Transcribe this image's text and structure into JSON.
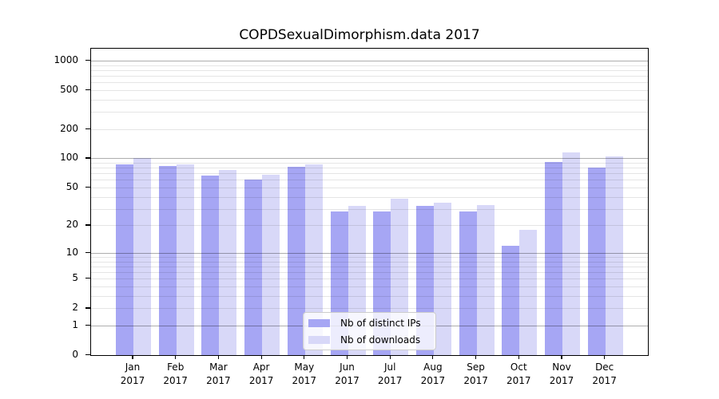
{
  "title": "COPDSexualDimorphism.data 2017",
  "chart_data": {
    "type": "bar",
    "title": "COPDSexualDimorphism.data 2017",
    "categories": [
      "Jan",
      "Feb",
      "Mar",
      "Apr",
      "May",
      "Jun",
      "Jul",
      "Aug",
      "Sep",
      "Oct",
      "Nov",
      "Dec"
    ],
    "x_tick_year": "2017",
    "series": [
      {
        "name": "Nb of distinct IPs",
        "color": "#a6a6f4",
        "values": [
          87,
          83,
          67,
          60,
          82,
          28,
          28,
          32,
          28,
          12,
          92,
          81
        ]
      },
      {
        "name": "Nb of downloads",
        "color": "#d8d8f8",
        "values": [
          101,
          86,
          76,
          68,
          86,
          32,
          38,
          35,
          33,
          18,
          115,
          104
        ]
      }
    ],
    "y_ticks": [
      0,
      1,
      2,
      5,
      10,
      20,
      50,
      100,
      200,
      500,
      1000
    ],
    "y_minor_gridlines": [
      2,
      3,
      4,
      5,
      6,
      7,
      8,
      9,
      20,
      30,
      40,
      50,
      60,
      70,
      80,
      90,
      200,
      300,
      400,
      500,
      600,
      700,
      800,
      900
    ],
    "y_major_gridlines": [
      1,
      10,
      100,
      1000
    ],
    "y_scale": "log10(value+1)",
    "ylim": [
      0,
      1300
    ],
    "grid": "horizontal",
    "legend_position": "lower center inside plot"
  }
}
